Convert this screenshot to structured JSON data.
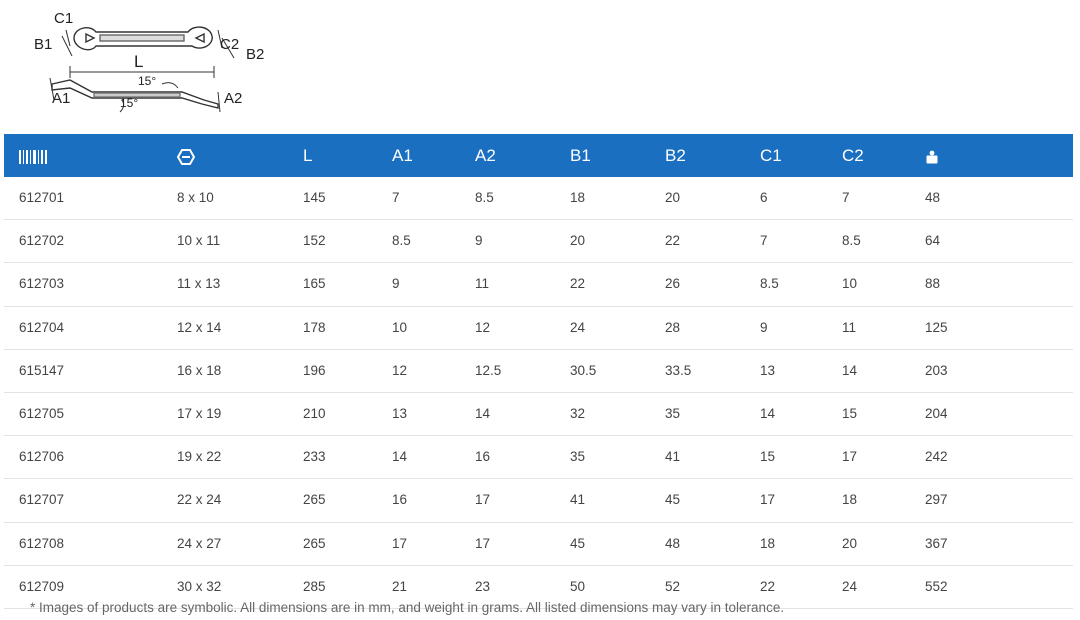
{
  "diagram": {
    "labels": {
      "c1": "C1",
      "b1": "B1",
      "c2": "C2",
      "b2": "B2",
      "l": "L",
      "angle_top": "15°",
      "angle_bottom": "15°",
      "a1": "A1",
      "a2": "A2"
    }
  },
  "table": {
    "header": {
      "article_icon": "barcode-icon",
      "size_icon": "wrench-size-icon",
      "l": "L",
      "a1": "A1",
      "a2": "A2",
      "b1": "B1",
      "b2": "B2",
      "c1": "C1",
      "c2": "C2",
      "weight_icon": "weight-icon"
    },
    "rows": [
      [
        "612701",
        "8 x 10",
        "145",
        "7",
        "8.5",
        "18",
        "20",
        "6",
        "7",
        "48"
      ],
      [
        "612702",
        "10 x 11",
        "152",
        "8.5",
        "9",
        "20",
        "22",
        "7",
        "8.5",
        "64"
      ],
      [
        "612703",
        "11 x 13",
        "165",
        "9",
        "11",
        "22",
        "26",
        "8.5",
        "10",
        "88"
      ],
      [
        "612704",
        "12 x 14",
        "178",
        "10",
        "12",
        "24",
        "28",
        "9",
        "11",
        "125"
      ],
      [
        "615147",
        "16 x 18",
        "196",
        "12",
        "12.5",
        "30.5",
        "33.5",
        "13",
        "14",
        "203"
      ],
      [
        "612705",
        "17 x 19",
        "210",
        "13",
        "14",
        "32",
        "35",
        "14",
        "15",
        "204"
      ],
      [
        "612706",
        "19 x 22",
        "233",
        "14",
        "16",
        "35",
        "41",
        "15",
        "17",
        "242"
      ],
      [
        "612707",
        "22 x 24",
        "265",
        "16",
        "17",
        "41",
        "45",
        "17",
        "18",
        "297"
      ],
      [
        "612708",
        "24 x 27",
        "265",
        "17",
        "17",
        "45",
        "48",
        "18",
        "20",
        "367"
      ],
      [
        "612709",
        "30 x 32",
        "285",
        "21",
        "23",
        "50",
        "52",
        "22",
        "24",
        "552"
      ]
    ]
  },
  "footnote": "* Images of products are symbolic. All dimensions are in mm, and weight in grams. All listed dimensions may vary in tolerance."
}
